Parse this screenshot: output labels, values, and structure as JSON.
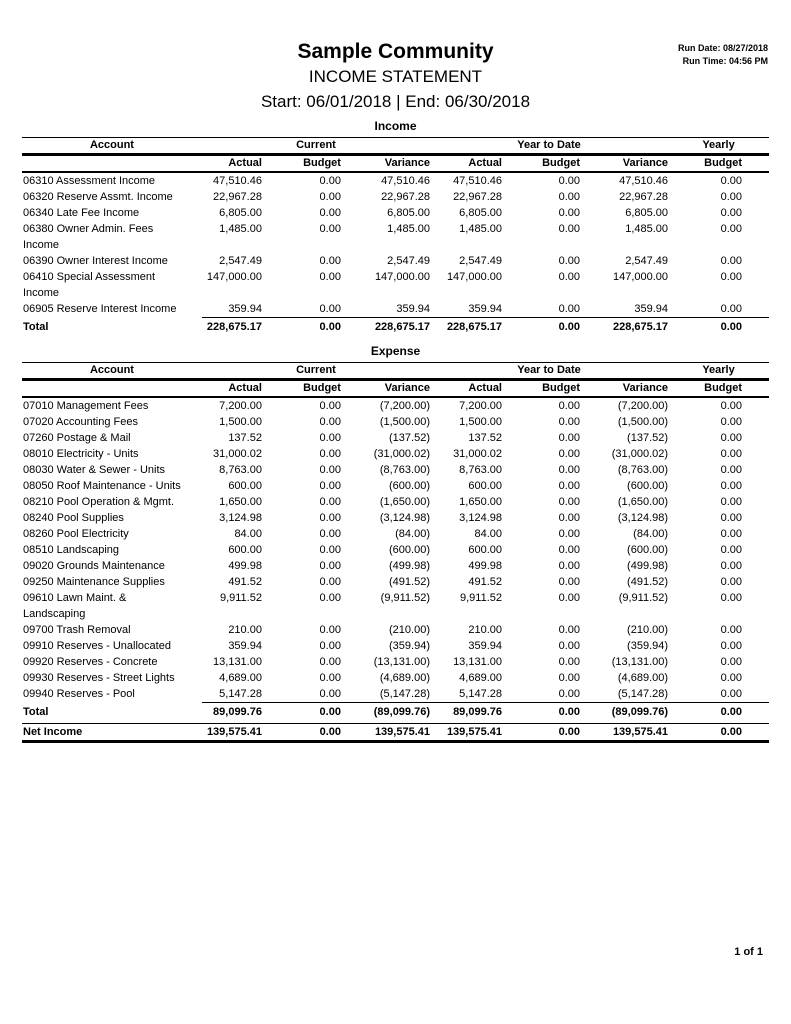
{
  "meta": {
    "run_date_line": "Run Date: 08/27/2018",
    "run_time_line": "Run Time: 04:56 PM"
  },
  "header": {
    "community": "Sample Community",
    "report": "INCOME STATEMENT",
    "period": "Start: 06/01/2018 | End: 06/30/2018"
  },
  "columns": {
    "account": "Account",
    "current": "Current",
    "ytd": "Year to Date",
    "yearly": "Yearly",
    "sub": [
      "Actual",
      "Budget",
      "Variance",
      "Actual",
      "Budget",
      "Variance",
      "Budget"
    ]
  },
  "income": {
    "section_label": "Income",
    "rows": [
      {
        "account": "06310 Assessment Income",
        "values": [
          "47,510.46",
          "0.00",
          "47,510.46",
          "47,510.46",
          "0.00",
          "47,510.46",
          "0.00"
        ]
      },
      {
        "account": "06320 Reserve Assmt. Income",
        "values": [
          "22,967.28",
          "0.00",
          "22,967.28",
          "22,967.28",
          "0.00",
          "22,967.28",
          "0.00"
        ]
      },
      {
        "account": "06340 Late Fee Income",
        "values": [
          "6,805.00",
          "0.00",
          "6,805.00",
          "6,805.00",
          "0.00",
          "6,805.00",
          "0.00"
        ]
      },
      {
        "account": "06380 Owner Admin. Fees\nIncome",
        "values": [
          "1,485.00",
          "0.00",
          "1,485.00",
          "1,485.00",
          "0.00",
          "1,485.00",
          "0.00"
        ]
      },
      {
        "account": "06390 Owner Interest Income",
        "values": [
          "2,547.49",
          "0.00",
          "2,547.49",
          "2,547.49",
          "0.00",
          "2,547.49",
          "0.00"
        ]
      },
      {
        "account": "06410 Special Assessment\nIncome",
        "values": [
          "147,000.00",
          "0.00",
          "147,000.00",
          "147,000.00",
          "0.00",
          "147,000.00",
          "0.00"
        ]
      },
      {
        "account": "06905 Reserve Interest Income",
        "values": [
          "359.94",
          "0.00",
          "359.94",
          "359.94",
          "0.00",
          "359.94",
          "0.00"
        ]
      }
    ],
    "total": {
      "label": "Total",
      "values": [
        "228,675.17",
        "0.00",
        "228,675.17",
        "228,675.17",
        "0.00",
        "228,675.17",
        "0.00"
      ]
    }
  },
  "expense": {
    "section_label": "Expense",
    "rows": [
      {
        "account": "07010 Management Fees",
        "values": [
          "7,200.00",
          "0.00",
          "(7,200.00)",
          "7,200.00",
          "0.00",
          "(7,200.00)",
          "0.00"
        ]
      },
      {
        "account": "07020 Accounting Fees",
        "values": [
          "1,500.00",
          "0.00",
          "(1,500.00)",
          "1,500.00",
          "0.00",
          "(1,500.00)",
          "0.00"
        ]
      },
      {
        "account": "07260 Postage & Mail",
        "values": [
          "137.52",
          "0.00",
          "(137.52)",
          "137.52",
          "0.00",
          "(137.52)",
          "0.00"
        ]
      },
      {
        "account": "08010 Electricity - Units",
        "values": [
          "31,000.02",
          "0.00",
          "(31,000.02)",
          "31,000.02",
          "0.00",
          "(31,000.02)",
          "0.00"
        ]
      },
      {
        "account": "08030 Water & Sewer - Units",
        "values": [
          "8,763.00",
          "0.00",
          "(8,763.00)",
          "8,763.00",
          "0.00",
          "(8,763.00)",
          "0.00"
        ]
      },
      {
        "account": "08050 Roof Maintenance - Units",
        "values": [
          "600.00",
          "0.00",
          "(600.00)",
          "600.00",
          "0.00",
          "(600.00)",
          "0.00"
        ]
      },
      {
        "account": "08210 Pool Operation & Mgmt.",
        "values": [
          "1,650.00",
          "0.00",
          "(1,650.00)",
          "1,650.00",
          "0.00",
          "(1,650.00)",
          "0.00"
        ]
      },
      {
        "account": "08240 Pool Supplies",
        "values": [
          "3,124.98",
          "0.00",
          "(3,124.98)",
          "3,124.98",
          "0.00",
          "(3,124.98)",
          "0.00"
        ]
      },
      {
        "account": "08260 Pool Electricity",
        "values": [
          "84.00",
          "0.00",
          "(84.00)",
          "84.00",
          "0.00",
          "(84.00)",
          "0.00"
        ]
      },
      {
        "account": "08510 Landscaping",
        "values": [
          "600.00",
          "0.00",
          "(600.00)",
          "600.00",
          "0.00",
          "(600.00)",
          "0.00"
        ]
      },
      {
        "account": "09020 Grounds Maintenance",
        "values": [
          "499.98",
          "0.00",
          "(499.98)",
          "499.98",
          "0.00",
          "(499.98)",
          "0.00"
        ]
      },
      {
        "account": "09250 Maintenance Supplies",
        "values": [
          "491.52",
          "0.00",
          "(491.52)",
          "491.52",
          "0.00",
          "(491.52)",
          "0.00"
        ]
      },
      {
        "account": "09610 Lawn Maint. &\nLandscaping",
        "values": [
          "9,911.52",
          "0.00",
          "(9,911.52)",
          "9,911.52",
          "0.00",
          "(9,911.52)",
          "0.00"
        ]
      },
      {
        "account": "09700 Trash Removal",
        "values": [
          "210.00",
          "0.00",
          "(210.00)",
          "210.00",
          "0.00",
          "(210.00)",
          "0.00"
        ]
      },
      {
        "account": "09910 Reserves - Unallocated",
        "values": [
          "359.94",
          "0.00",
          "(359.94)",
          "359.94",
          "0.00",
          "(359.94)",
          "0.00"
        ]
      },
      {
        "account": "09920 Reserves - Concrete",
        "values": [
          "13,131.00",
          "0.00",
          "(13,131.00)",
          "13,131.00",
          "0.00",
          "(13,131.00)",
          "0.00"
        ]
      },
      {
        "account": "09930 Reserves - Street Lights",
        "values": [
          "4,689.00",
          "0.00",
          "(4,689.00)",
          "4,689.00",
          "0.00",
          "(4,689.00)",
          "0.00"
        ]
      },
      {
        "account": "09940 Reserves - Pool",
        "values": [
          "5,147.28",
          "0.00",
          "(5,147.28)",
          "5,147.28",
          "0.00",
          "(5,147.28)",
          "0.00"
        ]
      }
    ],
    "total": {
      "label": "Total",
      "values": [
        "89,099.76",
        "0.00",
        "(89,099.76)",
        "89,099.76",
        "0.00",
        "(89,099.76)",
        "0.00"
      ]
    }
  },
  "net_income": {
    "label": "Net Income",
    "values": [
      "139,575.41",
      "0.00",
      "139,575.41",
      "139,575.41",
      "0.00",
      "139,575.41",
      "0.00"
    ]
  },
  "footer": {
    "page": "1 of 1"
  }
}
